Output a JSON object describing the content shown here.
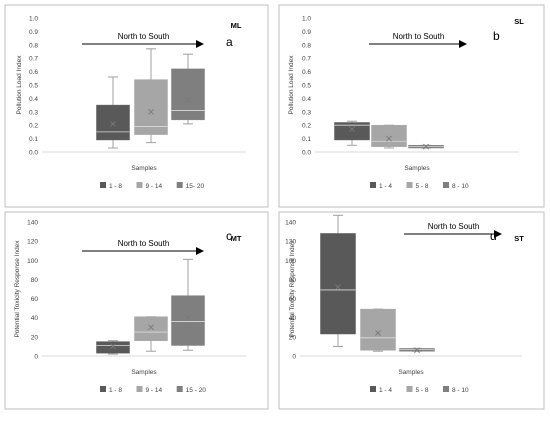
{
  "chart_data": [
    {
      "panel_id": "a",
      "type": "box",
      "panel_letter": "a",
      "code": "ML",
      "arrow_label": "North to South",
      "ylabel": "Pollution Load Index",
      "xlabel": "Samples",
      "ylim": [
        0,
        1.0
      ],
      "yticks": [
        0.0,
        0.1,
        0.2,
        0.3,
        0.4,
        0.5,
        0.6,
        0.7,
        0.8,
        0.9,
        1.0
      ],
      "ytick_labels": [
        "0.0",
        "0.1",
        "0.2",
        "0.3",
        "0.4",
        "0.5",
        "0.6",
        "0.7",
        "0.8",
        "0.9",
        "1.0"
      ],
      "series": [
        {
          "name": "1 - 8",
          "color": "#595959",
          "min": 0.03,
          "q1": 0.09,
          "median": 0.15,
          "q3": 0.35,
          "max": 0.56,
          "mean": 0.21
        },
        {
          "name": "9 - 14",
          "color": "#a6a6a6",
          "min": 0.07,
          "q1": 0.13,
          "median": 0.19,
          "q3": 0.54,
          "max": 0.77,
          "mean": 0.3
        },
        {
          "name": "15- 20",
          "color": "#7f7f7f",
          "min": 0.21,
          "q1": 0.24,
          "median": 0.31,
          "q3": 0.62,
          "max": 0.73,
          "mean": 0.39
        }
      ]
    },
    {
      "panel_id": "b",
      "type": "box",
      "panel_letter": "b",
      "code": "SL",
      "arrow_label": "North to South",
      "ylabel": "Pollution Load Index",
      "xlabel": "Samples",
      "ylim": [
        0,
        1.0
      ],
      "yticks": [
        0.0,
        0.1,
        0.2,
        0.3,
        0.4,
        0.5,
        0.6,
        0.7,
        0.8,
        0.9,
        1.0
      ],
      "ytick_labels": [
        "0.0",
        "0.1",
        "0.2",
        "0.3",
        "0.4",
        "0.5",
        "0.6",
        "0.7",
        "0.8",
        "0.9",
        "1.0"
      ],
      "series": [
        {
          "name": "1 - 4",
          "color": "#595959",
          "min": 0.05,
          "q1": 0.09,
          "median": 0.2,
          "q3": 0.22,
          "max": 0.23,
          "mean": 0.17
        },
        {
          "name": "5 - 8",
          "color": "#a6a6a6",
          "min": 0.03,
          "q1": 0.04,
          "median": 0.08,
          "q3": 0.2,
          "max": 0.2,
          "mean": 0.1
        },
        {
          "name": "8 - 10",
          "color": "#7f7f7f",
          "min": 0.03,
          "q1": 0.03,
          "median": 0.04,
          "q3": 0.05,
          "max": 0.05,
          "mean": 0.04
        }
      ]
    },
    {
      "panel_id": "c",
      "type": "box",
      "panel_letter": "c",
      "code": "MT",
      "arrow_label": "North to South",
      "ylabel": "Potential Toxicity Response Index",
      "xlabel": "Samples",
      "ylim": [
        0,
        140
      ],
      "yticks": [
        0,
        20,
        40,
        60,
        80,
        100,
        120,
        140
      ],
      "ytick_labels": [
        "0",
        "20",
        "40",
        "60",
        "80",
        "100",
        "120",
        "140"
      ],
      "series": [
        {
          "name": "1 - 8",
          "color": "#595959",
          "min": 2,
          "q1": 3,
          "median": 11,
          "q3": 15,
          "max": 16,
          "mean": 10
        },
        {
          "name": "9 - 14",
          "color": "#a6a6a6",
          "min": 5,
          "q1": 16,
          "median": 25,
          "q3": 41,
          "max": 41,
          "mean": 30
        },
        {
          "name": "15 - 20",
          "color": "#7f7f7f",
          "min": 6,
          "q1": 11,
          "median": 36,
          "q3": 63,
          "max": 101,
          "mean": 40
        }
      ]
    },
    {
      "panel_id": "d",
      "type": "box",
      "panel_letter": "d",
      "code": "ST",
      "arrow_label": "North to South",
      "ylabel": "Potential Toxicity Response Index",
      "xlabel": "Samples",
      "ylim": [
        0,
        140
      ],
      "yticks": [
        0,
        20,
        40,
        60,
        80,
        100,
        120,
        140
      ],
      "ytick_labels": [
        "0",
        "20",
        "40",
        "60",
        "80",
        "100",
        "120",
        "140"
      ],
      "series": [
        {
          "name": "1 - 4",
          "color": "#595959",
          "min": 10,
          "q1": 23,
          "median": 69,
          "q3": 128,
          "max": 147,
          "mean": 72
        },
        {
          "name": "5 - 8",
          "color": "#a6a6a6",
          "min": 5,
          "q1": 6,
          "median": 19,
          "q3": 49,
          "max": 49,
          "mean": 24
        },
        {
          "name": "8 - 10",
          "color": "#7f7f7f",
          "min": 5,
          "q1": 5,
          "median": 7,
          "q3": 8,
          "max": 8,
          "mean": 6
        }
      ]
    }
  ]
}
